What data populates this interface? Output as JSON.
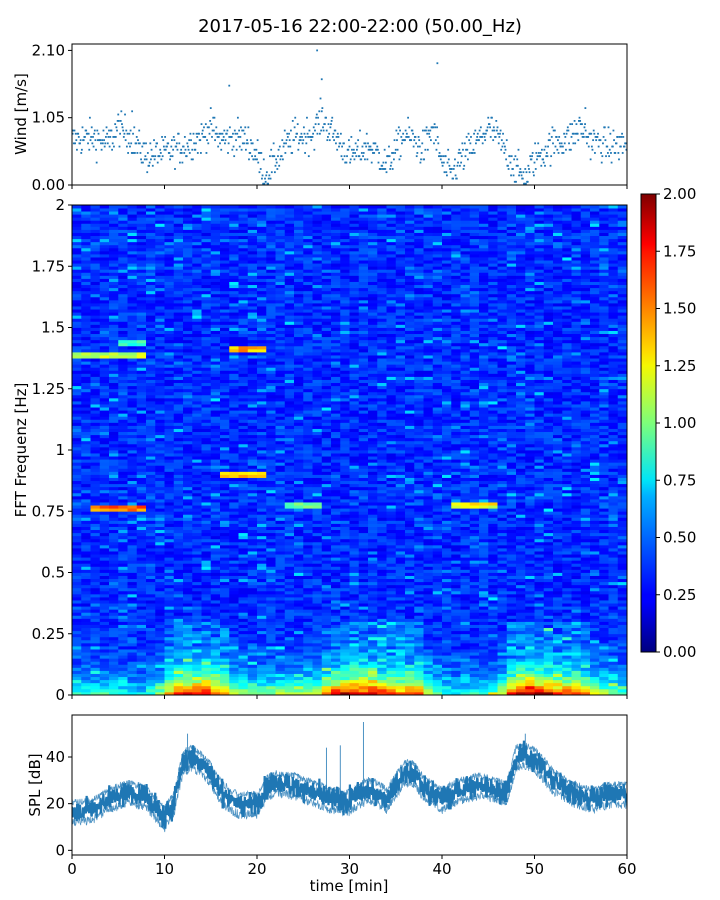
{
  "figure": {
    "title": "2017-05-16 22:00-22:00 (50.00_Hz)"
  },
  "chart_data": [
    {
      "panel": "wind",
      "type": "scatter",
      "ylabel": "Wind [m/s]",
      "ylim": [
        0.0,
        2.2
      ],
      "xlim": [
        0,
        60
      ],
      "x_unit": "min",
      "yticks": [
        0.0,
        1.05,
        2.1
      ],
      "ytick_labels": [
        "0.00",
        "1.05",
        "2.10"
      ],
      "series_color": "#1f77b4",
      "profile_x": [
        0,
        2,
        4,
        5,
        6,
        8,
        10,
        12,
        14,
        15,
        16,
        18,
        19,
        20,
        21,
        22,
        24,
        26,
        27,
        28,
        30,
        32,
        33,
        34,
        35,
        36,
        37,
        38,
        39,
        40,
        41,
        42,
        44,
        45,
        46,
        47,
        48,
        49,
        50,
        52,
        54,
        55,
        56,
        58,
        60
      ],
      "profile_y": [
        0.7,
        0.75,
        0.65,
        0.9,
        0.8,
        0.45,
        0.5,
        0.6,
        0.75,
        0.9,
        0.7,
        0.75,
        0.7,
        0.45,
        0.15,
        0.4,
        0.75,
        0.8,
        1.05,
        0.85,
        0.45,
        0.6,
        0.5,
        0.3,
        0.55,
        0.8,
        0.7,
        0.55,
        0.9,
        0.35,
        0.15,
        0.4,
        0.7,
        0.9,
        0.75,
        0.5,
        0.25,
        0.1,
        0.4,
        0.65,
        0.75,
        0.9,
        0.7,
        0.6,
        0.65
      ],
      "outliers": [
        [
          26.5,
          2.1
        ],
        [
          39.5,
          1.9
        ],
        [
          17,
          1.55
        ],
        [
          27,
          1.65
        ],
        [
          55.5,
          1.2
        ],
        [
          6.5,
          1.15
        ]
      ]
    },
    {
      "panel": "spectrogram",
      "type": "heatmap",
      "ylabel": "FFT Frequenz [Hz]",
      "ylim": [
        0,
        2
      ],
      "xlim": [
        0,
        60
      ],
      "yticks": [
        0,
        0.25,
        0.5,
        0.75,
        1,
        1.25,
        1.5,
        1.75,
        2
      ],
      "ytick_labels": [
        "0",
        "0.25",
        "0.5",
        "0.75",
        "1",
        "1.25",
        "1.5",
        "1.75",
        "2"
      ],
      "colormap": "jet",
      "clim": [
        0.0,
        2.0
      ],
      "colorbar_ticks": [
        "0.00",
        "0.25",
        "0.50",
        "0.75",
        "1.00",
        "1.25",
        "1.50",
        "1.75",
        "2.00"
      ],
      "ridges": [
        {
          "x0": 0,
          "x1": 8,
          "freq": 1.39,
          "level": 1.2
        },
        {
          "x0": 5,
          "x1": 8,
          "freq": 1.44,
          "level": 0.9
        },
        {
          "x0": 17,
          "x1": 21,
          "freq": 1.41,
          "level": 1.5
        },
        {
          "x0": 2,
          "x1": 8,
          "freq": 0.76,
          "level": 1.6
        },
        {
          "x0": 41,
          "x1": 46,
          "freq": 0.77,
          "level": 1.3
        },
        {
          "x0": 16,
          "x1": 21,
          "freq": 0.9,
          "level": 1.4
        },
        {
          "x0": 23,
          "x1": 27,
          "freq": 0.77,
          "level": 1.0
        }
      ],
      "low_freq_energy_x": [
        0,
        4,
        8,
        10,
        12,
        14,
        16,
        18,
        20,
        22,
        24,
        26,
        28,
        30,
        32,
        34,
        36,
        38,
        40,
        42,
        44,
        46,
        48,
        50,
        52,
        54,
        56,
        58,
        60
      ],
      "low_freq_energy": [
        0.5,
        0.6,
        0.4,
        0.9,
        1.4,
        1.5,
        1.2,
        0.9,
        0.7,
        0.8,
        0.9,
        0.8,
        1.3,
        1.6,
        1.5,
        1.4,
        1.2,
        1.1,
        0.6,
        0.4,
        0.6,
        0.7,
        1.6,
        1.7,
        1.4,
        1.2,
        1.0,
        0.8,
        0.6
      ]
    },
    {
      "panel": "spl",
      "type": "line",
      "ylabel": "SPL [dB]",
      "xlabel": "time [min]",
      "ylim": [
        -2,
        58
      ],
      "xlim": [
        0,
        60
      ],
      "yticks": [
        0,
        20,
        40
      ],
      "ytick_labels": [
        "0",
        "20",
        "40"
      ],
      "xticks": [
        0,
        10,
        20,
        30,
        40,
        50,
        60
      ],
      "xtick_labels": [
        "0",
        "10",
        "20",
        "30",
        "40",
        "50",
        "60"
      ],
      "series_color": "#1f77b4",
      "profile_x": [
        0,
        2,
        4,
        6,
        8,
        10,
        11,
        12,
        13,
        14,
        15,
        16,
        17,
        18,
        20,
        21,
        22,
        24,
        26,
        28,
        30,
        31,
        32,
        33,
        34,
        35,
        36,
        37,
        38,
        39,
        40,
        42,
        44,
        46,
        47,
        48,
        49,
        50,
        51,
        52,
        54,
        56,
        58,
        60
      ],
      "profile_y": [
        17,
        17,
        22,
        25,
        23,
        14,
        20,
        38,
        40,
        37,
        33,
        26,
        22,
        20,
        20,
        27,
        29,
        28,
        25,
        22,
        21,
        24,
        26,
        25,
        22,
        28,
        34,
        33,
        27,
        25,
        22,
        26,
        28,
        26,
        25,
        40,
        41,
        39,
        35,
        30,
        25,
        22,
        24,
        24
      ],
      "noise_amplitude_db": 5,
      "spikes": [
        [
          31.5,
          55
        ],
        [
          27.5,
          44
        ],
        [
          29,
          45
        ],
        [
          12.5,
          50
        ],
        [
          49,
          50
        ]
      ]
    }
  ]
}
